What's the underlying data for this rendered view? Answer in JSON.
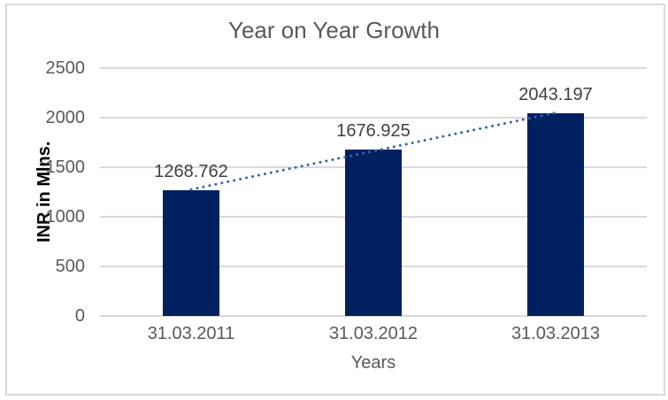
{
  "chart_data": {
    "type": "bar",
    "title": "Year on Year Growth",
    "categories": [
      "31.03.2011",
      "31.03.2012",
      "31.03.2013"
    ],
    "values": [
      1268.762,
      1676.925,
      2043.197
    ],
    "data_labels": [
      "1268.762",
      "1676.925",
      "2043.197"
    ],
    "xlabel": "Years",
    "ylabel": "INR in Mlns.",
    "ylim": [
      0,
      2500
    ],
    "yticks": [
      0,
      500,
      1000,
      1500,
      2000,
      2500
    ],
    "ytick_labels": [
      "0",
      "500",
      "1000",
      "1500",
      "2000",
      "2500"
    ],
    "grid": true,
    "legend": "none",
    "trendline": {
      "type": "linear",
      "style": "dotted"
    },
    "colors": {
      "bar": "#00205F",
      "trendline": "#3765AE",
      "gridline": "#D9D9D9",
      "axis_line": "#D6D6D6",
      "tick_text": "#595959",
      "title_text": "#595959",
      "data_label_text": "#404040",
      "y_axis_title_text": "#000000",
      "border": "#D9D9D9",
      "background": "#FFFFFF"
    }
  }
}
